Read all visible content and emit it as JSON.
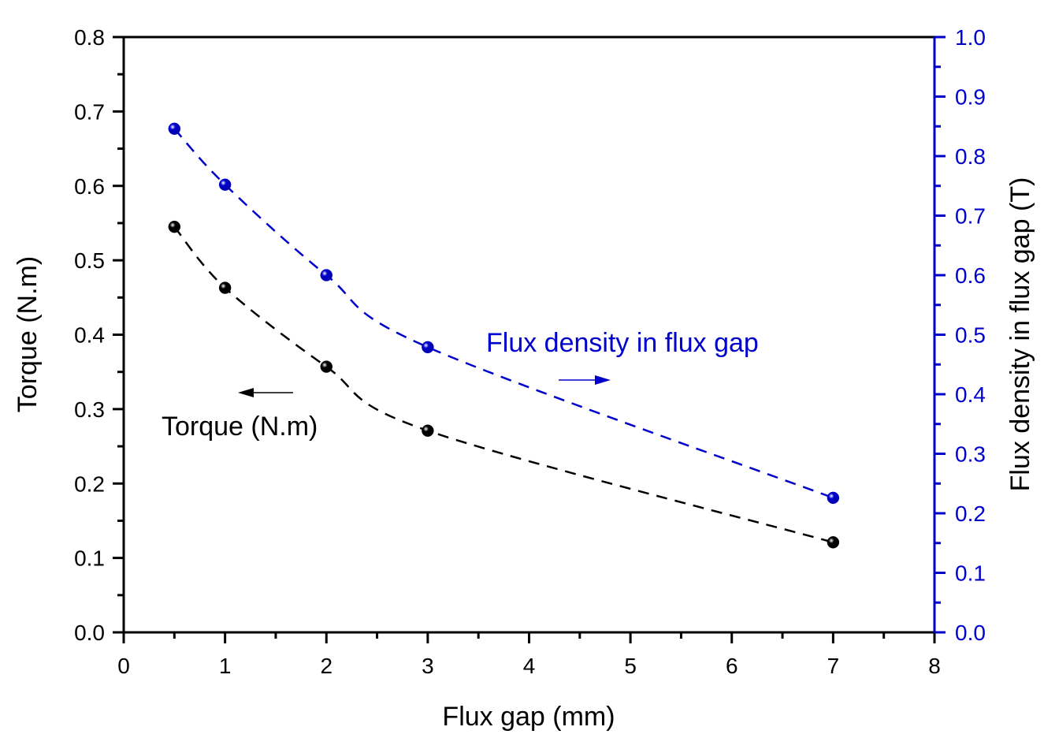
{
  "chart_data": {
    "type": "line",
    "title": "",
    "xlabel": "Flux gap (mm)",
    "ylabel": "Torque (N.m)",
    "ylabel_right": "Flux density in flux gap (T)",
    "xlim": [
      0,
      8
    ],
    "ylim": [
      0.0,
      0.8
    ],
    "ylim_right": [
      0.0,
      1.0
    ],
    "x_ticks": [
      "0",
      "1",
      "2",
      "3",
      "4",
      "5",
      "6",
      "7",
      "8"
    ],
    "y_ticks": [
      "0.0",
      "0.1",
      "0.2",
      "0.3",
      "0.4",
      "0.5",
      "0.6",
      "0.7",
      "0.8"
    ],
    "y_ticks_right": [
      "0.0",
      "0.1",
      "0.2",
      "0.3",
      "0.4",
      "0.5",
      "0.6",
      "0.7",
      "0.8",
      "0.9",
      "1.0"
    ],
    "grid": false,
    "x": [
      0.5,
      1,
      2,
      3,
      7
    ],
    "series": [
      {
        "name": "Torque (N.m)",
        "axis": "left",
        "color": "#000000",
        "values": [
          0.545,
          0.463,
          0.357,
          0.271,
          0.121
        ]
      },
      {
        "name": "Flux density in flux gap",
        "axis": "right",
        "color": "#0000cc",
        "values": [
          0.846,
          0.752,
          0.6,
          0.479,
          0.226
        ]
      }
    ],
    "annotations": [
      {
        "text": "Torque (N.m)",
        "color": "#000000",
        "arrow": "left"
      },
      {
        "text": "Flux density in flux gap",
        "color": "#0000cc",
        "arrow": "right"
      }
    ],
    "legend_position": "none (inline annotations)"
  },
  "labels": {
    "xlabel": "Flux gap (mm)",
    "ylabel": "Torque (N.m)",
    "ylabel_right": "Flux density in flux gap (T)",
    "annot_torque": "Torque (N.m)",
    "annot_flux": "Flux density in flux gap"
  },
  "colors": {
    "left_axis": "#000000",
    "right_axis": "#0000cc",
    "torque": "#000000",
    "flux": "#0000cc"
  }
}
